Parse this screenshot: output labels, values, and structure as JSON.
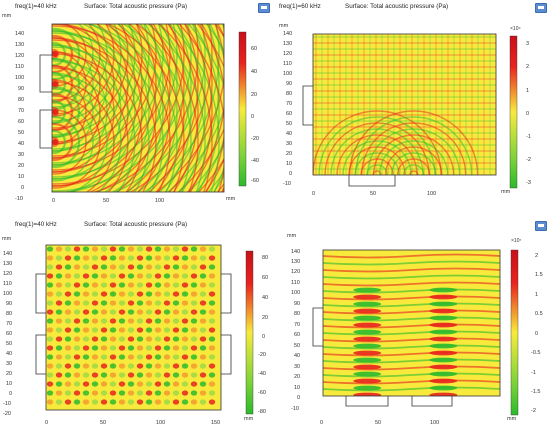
{
  "panels": [
    {
      "id": "p1",
      "freq_label": "freq(1)=40 kHz",
      "surface_label": "Surface: Total acoustic pressure (Pa)",
      "unit": "mm",
      "y_ticks": [
        "140",
        "130",
        "120",
        "110",
        "100",
        "90",
        "80",
        "70",
        "60",
        "50",
        "40",
        "30",
        "20",
        "10",
        "0",
        "-10"
      ],
      "x_ticks": [
        "0",
        "50",
        "100"
      ],
      "colorbar_ticks": [
        "60",
        "40",
        "20",
        "0",
        "-20",
        "-40",
        "-60"
      ],
      "colorbar_exponent": "",
      "pattern": "radial"
    },
    {
      "id": "p2",
      "freq_label": "freq(1)=60 kHz",
      "surface_label": "Surface: Total acoustic pressure (Pa)",
      "unit": "mm",
      "y_ticks": [
        "140",
        "130",
        "120",
        "110",
        "100",
        "90",
        "80",
        "70",
        "60",
        "50",
        "40",
        "30",
        "20",
        "10",
        "0",
        "-10"
      ],
      "x_ticks": [
        "0",
        "50",
        "100"
      ],
      "colorbar_ticks": [
        "3",
        "2",
        "1",
        "0",
        "-1",
        "-2",
        "-3"
      ],
      "colorbar_exponent": "×10⁴",
      "pattern": "grid"
    },
    {
      "id": "p3",
      "freq_label": "freq(1)=40 kHz",
      "surface_label": "Surface: Total acoustic pressure (Pa)",
      "unit": "mm",
      "y_ticks": [
        "140",
        "130",
        "120",
        "110",
        "100",
        "90",
        "80",
        "70",
        "60",
        "50",
        "40",
        "30",
        "20",
        "10",
        "0",
        "-10",
        "-20"
      ],
      "x_ticks": [
        "0",
        "50",
        "100",
        "150"
      ],
      "colorbar_ticks": [
        "80",
        "60",
        "40",
        "20",
        "0",
        "-20",
        "-40",
        "-60",
        "-80"
      ],
      "colorbar_exponent": "",
      "pattern": "cells"
    },
    {
      "id": "p4",
      "freq_label": "",
      "surface_label": "",
      "unit": "mm",
      "y_ticks": [
        "140",
        "130",
        "120",
        "110",
        "100",
        "90",
        "80",
        "70",
        "60",
        "50",
        "40",
        "30",
        "20",
        "10",
        "0",
        "-10"
      ],
      "x_ticks": [
        "0",
        "50",
        "100"
      ],
      "colorbar_ticks": [
        "2",
        "1.5",
        "1",
        "0.5",
        "0",
        "-0.5",
        "-1",
        "-1.5",
        "-2"
      ],
      "colorbar_exponent": "×10⁷",
      "pattern": "bands"
    }
  ],
  "colors": {
    "positive": "#e8231e",
    "neutral": "#f7ea3c",
    "negative": "#2cba2c",
    "frame": "#333333",
    "settings_icon": "#5b8bd0"
  },
  "icons": [
    "settings-icon"
  ]
}
